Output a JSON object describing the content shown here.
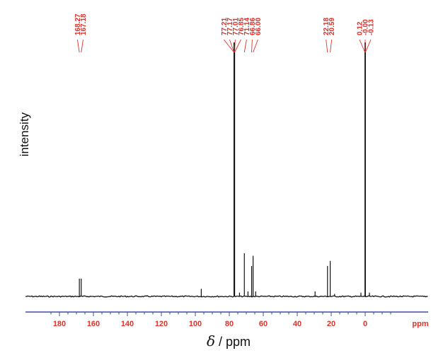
{
  "chart_data": {
    "type": "line",
    "title": "",
    "xlabel_symbol": "δ",
    "xlabel": " / ppm",
    "ylabel": "intensity",
    "xlim": [
      185,
      -15
    ],
    "x_reversed": true,
    "ylim": [
      0,
      100
    ],
    "x_ticks": [
      {
        "value": 180,
        "label": "180"
      },
      {
        "value": 160,
        "label": "160"
      },
      {
        "value": 140,
        "label": "140"
      },
      {
        "value": 120,
        "label": "120"
      },
      {
        "value": 100,
        "label": "100"
      },
      {
        "value": 80,
        "label": "80"
      },
      {
        "value": 60,
        "label": "60"
      },
      {
        "value": 40,
        "label": "40"
      },
      {
        "value": 20,
        "label": "20"
      },
      {
        "value": 0,
        "label": "0"
      }
    ],
    "x_unit_label": "ppm",
    "series": [
      {
        "peaks": [
          {
            "x": 168.27,
            "y": 7
          },
          {
            "x": 167.18,
            "y": 7
          },
          {
            "x": 96.5,
            "y": 3
          },
          {
            "x": 77.21,
            "y": 100
          },
          {
            "x": 77.17,
            "y": 100
          },
          {
            "x": 77.01,
            "y": 100
          },
          {
            "x": 76.85,
            "y": 100
          },
          {
            "x": 74.0,
            "y": 1.5
          },
          {
            "x": 71.14,
            "y": 17
          },
          {
            "x": 69.0,
            "y": 2
          },
          {
            "x": 66.86,
            "y": 12
          },
          {
            "x": 66.0,
            "y": 16
          },
          {
            "x": 64.5,
            "y": 2
          },
          {
            "x": 29.5,
            "y": 2
          },
          {
            "x": 22.18,
            "y": 12
          },
          {
            "x": 20.59,
            "y": 14
          },
          {
            "x": 18.0,
            "y": 1
          },
          {
            "x": 0.12,
            "y": 100
          },
          {
            "x": 0.0,
            "y": 100
          },
          {
            "x": -0.13,
            "y": 100
          },
          {
            "x": -2.5,
            "y": 1.5
          },
          {
            "x": 2.5,
            "y": 1.5
          }
        ]
      }
    ],
    "peak_label_groups": [
      {
        "labels": [
          "168.27",
          "167.18"
        ],
        "peaks": [
          168.27,
          167.18
        ]
      },
      {
        "labels": [
          "77.21",
          "77.17",
          "77.01",
          "76.85",
          "71.14",
          "66.86",
          "66.00"
        ],
        "peaks": [
          77.21,
          77.17,
          77.01,
          76.85,
          71.14,
          66.86,
          66.0
        ]
      },
      {
        "labels": [
          "22.18",
          "20.59"
        ],
        "peaks": [
          22.18,
          20.59
        ]
      },
      {
        "labels": [
          "0.12",
          "-0.00",
          "-0.13"
        ],
        "peaks": [
          0.12,
          0.0,
          -0.13
        ]
      }
    ],
    "colors": {
      "axis": "#3b4fa0",
      "tick_labels": "#d9342b",
      "peak_labels": "#e0302a",
      "spectrum": "#111111"
    }
  }
}
